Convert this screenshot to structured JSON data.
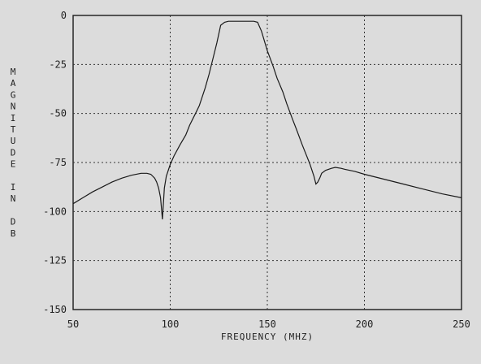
{
  "chart_data": {
    "type": "line",
    "title": "",
    "xlabel": "FREQUENCY (MHZ)",
    "ylabel": "MAGNITUDE IN DB",
    "xlim": [
      50,
      250
    ],
    "ylim": [
      -150,
      0
    ],
    "xticks": [
      50,
      100,
      150,
      200,
      250
    ],
    "xtick_labels": [
      "50",
      "100",
      "150",
      "200",
      "250"
    ],
    "yticks": [
      0,
      -25,
      -50,
      -75,
      -100,
      -125,
      -150
    ],
    "ytick_labels": [
      "0",
      "-25",
      "-50",
      "-75",
      "-100",
      "-125",
      "-150"
    ],
    "grid": true,
    "grid_style": "dotted",
    "colors": {
      "background": "#dcdcdc",
      "line": "#1a1a1a",
      "grid": "#333333"
    },
    "series": [
      {
        "x": [
          50,
          55,
          60,
          65,
          70,
          75,
          80,
          85,
          88,
          90,
          92,
          93,
          94,
          95,
          96,
          97,
          98,
          100,
          102,
          105,
          108,
          110,
          113,
          115,
          118,
          120,
          122,
          124,
          126,
          128,
          130,
          135,
          140,
          143,
          145,
          147,
          150,
          153,
          155,
          158,
          160,
          163,
          165,
          168,
          170,
          172,
          174,
          175,
          176,
          177,
          178,
          180,
          183,
          185,
          188,
          190,
          195,
          200,
          210,
          220,
          230,
          240,
          250
        ],
        "y": [
          -96,
          -93,
          -90,
          -87.5,
          -85,
          -83,
          -81.5,
          -80.5,
          -80.5,
          -81,
          -83,
          -85,
          -88,
          -93,
          -104,
          -88,
          -82,
          -76,
          -71.5,
          -66,
          -61,
          -56,
          -50,
          -46,
          -37,
          -30,
          -22,
          -14,
          -5,
          -3.5,
          -3,
          -3,
          -3,
          -3,
          -3.5,
          -8,
          -18,
          -26,
          -32,
          -39,
          -45,
          -53,
          -58,
          -66,
          -71,
          -76,
          -82,
          -86,
          -85,
          -83,
          -80.5,
          -79,
          -78,
          -77.5,
          -78,
          -78.5,
          -79.5,
          -81,
          -83.5,
          -86,
          -88.5,
          -91,
          -93
        ]
      }
    ]
  }
}
